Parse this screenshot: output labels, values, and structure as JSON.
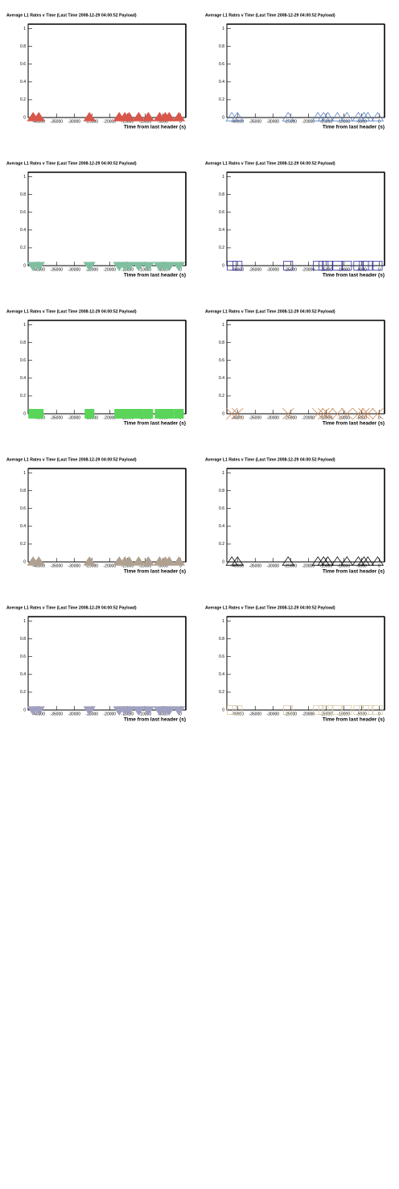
{
  "chart_data": [
    {
      "type": "scatter",
      "title": "Average L1 Rates v Time (Last Time 2008-12-29 04:00:52 Payload)",
      "xlabel": "Time from last header (s)",
      "x": [
        -41600,
        -40000,
        -25700,
        -17300,
        -15700,
        -14500,
        -11800,
        -9100,
        -5900,
        -4300,
        -3200,
        -450
      ],
      "values": [
        0,
        0,
        0,
        0,
        0,
        0,
        0,
        0,
        0,
        0,
        0,
        0
      ],
      "color": "#d9574a",
      "marker": "triangle-up",
      "filled": true,
      "xlim": [
        -43000,
        1500
      ],
      "ylim": [
        0,
        1.05
      ],
      "xticks": [
        -40000,
        -35000,
        -30000,
        -25000,
        -20000,
        -15000,
        -10000,
        -5000,
        0
      ],
      "yticks": [
        0,
        0.2,
        0.4,
        0.6,
        0.8,
        1
      ]
    },
    {
      "type": "scatter",
      "title": "Average L1 Rates v Time (Last Time 2008-12-29 04:00:52 Payload)",
      "xlabel": "Time from last header (s)",
      "x": [
        -41600,
        -40000,
        -25700,
        -17300,
        -15700,
        -14500,
        -11800,
        -9100,
        -5900,
        -4300,
        -3200,
        -450
      ],
      "values": [
        0,
        0,
        0,
        0,
        0,
        0,
        0,
        0,
        0,
        0,
        0,
        0
      ],
      "color": "#5a80c0",
      "marker": "triangle-up",
      "filled": false,
      "xlim": [
        -43000,
        1500
      ],
      "ylim": [
        0,
        1.05
      ],
      "xticks": [
        -40000,
        -35000,
        -30000,
        -25000,
        -20000,
        -15000,
        -10000,
        -5000,
        0
      ],
      "yticks": [
        0,
        0.2,
        0.4,
        0.6,
        0.8,
        1
      ]
    },
    {
      "type": "scatter",
      "title": "Average L1 Rates v Time (Last Time 2008-12-29 04:00:52 Payload)",
      "xlabel": "Time from last header (s)",
      "x": [
        -41600,
        -40000,
        -25700,
        -17300,
        -15700,
        -14500,
        -11800,
        -9100,
        -5900,
        -4300,
        -3200,
        -450
      ],
      "values": [
        0,
        0,
        0,
        0,
        0,
        0,
        0,
        0,
        0,
        0,
        0,
        0
      ],
      "color": "#7fbf9f",
      "marker": "triangle-down",
      "filled": true,
      "xlim": [
        -43000,
        1500
      ],
      "ylim": [
        0,
        1.05
      ],
      "xticks": [
        -40000,
        -35000,
        -30000,
        -25000,
        -20000,
        -15000,
        -10000,
        -5000,
        0
      ],
      "yticks": [
        0,
        0.2,
        0.4,
        0.6,
        0.8,
        1
      ]
    },
    {
      "type": "scatter",
      "title": "Average L1 Rates v Time (Last Time 2008-12-29 04:00:52 Payload)",
      "xlabel": "Time from last header (s)",
      "x": [
        -41600,
        -40000,
        -25700,
        -17300,
        -15700,
        -14500,
        -11800,
        -9100,
        -5900,
        -4300,
        -3200,
        -450
      ],
      "values": [
        0,
        0,
        0,
        0,
        0,
        0,
        0,
        0,
        0,
        0,
        0,
        0
      ],
      "color": "#3030a0",
      "marker": "square",
      "filled": false,
      "xlim": [
        -43000,
        1500
      ],
      "ylim": [
        0,
        1.05
      ],
      "xticks": [
        -40000,
        -35000,
        -30000,
        -25000,
        -20000,
        -15000,
        -10000,
        -5000,
        0
      ],
      "yticks": [
        0,
        0.2,
        0.4,
        0.6,
        0.8,
        1
      ]
    },
    {
      "type": "scatter",
      "title": "Average L1 Rates v Time (Last Time 2008-12-29 04:00:52 Payload)",
      "xlabel": "Time from last header (s)",
      "x": [
        -41600,
        -40000,
        -25700,
        -17300,
        -15700,
        -14500,
        -11800,
        -9100,
        -5900,
        -4300,
        -3200,
        -450
      ],
      "values": [
        0,
        0,
        0,
        0,
        0,
        0,
        0,
        0,
        0,
        0,
        0,
        0
      ],
      "color": "#5ad55a",
      "marker": "square",
      "filled": true,
      "xlim": [
        -43000,
        1500
      ],
      "ylim": [
        0,
        1.05
      ],
      "xticks": [
        -40000,
        -35000,
        -30000,
        -25000,
        -20000,
        -15000,
        -10000,
        -5000,
        0
      ],
      "yticks": [
        0,
        0.2,
        0.4,
        0.6,
        0.8,
        1
      ]
    },
    {
      "type": "scatter",
      "title": "Average L1 Rates v Time (Last Time 2008-12-29 04:00:52 Payload)",
      "xlabel": "Time from last header (s)",
      "x": [
        -41600,
        -40000,
        -25700,
        -17300,
        -15700,
        -14500,
        -11800,
        -9100,
        -5900,
        -4300,
        -3200,
        -450
      ],
      "values": [
        0,
        0,
        0,
        0,
        0,
        0,
        0,
        0,
        0,
        0,
        0,
        0
      ],
      "color": "#c8885a",
      "marker": "cross",
      "filled": false,
      "xlim": [
        -43000,
        1500
      ],
      "ylim": [
        0,
        1.05
      ],
      "xticks": [
        -40000,
        -35000,
        -30000,
        -25000,
        -20000,
        -15000,
        -10000,
        -5000,
        0
      ],
      "yticks": [
        0,
        0.2,
        0.4,
        0.6,
        0.8,
        1
      ]
    },
    {
      "type": "scatter",
      "title": "Average L1 Rates v Time (Last Time 2008-12-29 04:00:52 Payload)",
      "xlabel": "Time from last header (s)",
      "x": [
        -41600,
        -40000,
        -25700,
        -17300,
        -15700,
        -14500,
        -11800,
        -9100,
        -5900,
        -4300,
        -3200,
        -450
      ],
      "values": [
        0,
        0,
        0,
        0,
        0,
        0,
        0,
        0,
        0,
        0,
        0,
        0
      ],
      "color": "#b0a090",
      "marker": "triangle-up",
      "filled": true,
      "xlim": [
        -43000,
        1500
      ],
      "ylim": [
        0,
        1.05
      ],
      "xticks": [
        -40000,
        -35000,
        -30000,
        -25000,
        -20000,
        -15000,
        -10000,
        -5000,
        0
      ],
      "yticks": [
        0,
        0.2,
        0.4,
        0.6,
        0.8,
        1
      ]
    },
    {
      "type": "scatter",
      "title": "Average L1 Rates v Time (Last Time 2008-12-29 04:00:52 Payload)",
      "xlabel": "Time from last header (s)",
      "x": [
        -41600,
        -40000,
        -25700,
        -17300,
        -15700,
        -14500,
        -11800,
        -9100,
        -5900,
        -4300,
        -3200,
        -450
      ],
      "values": [
        0,
        0,
        0,
        0,
        0,
        0,
        0,
        0,
        0,
        0,
        0,
        0
      ],
      "color": "#000000",
      "marker": "triangle-up",
      "filled": false,
      "xlim": [
        -43000,
        1500
      ],
      "ylim": [
        0,
        1.05
      ],
      "xticks": [
        -40000,
        -35000,
        -30000,
        -25000,
        -20000,
        -15000,
        -10000,
        -5000,
        0
      ],
      "yticks": [
        0,
        0.2,
        0.4,
        0.6,
        0.8,
        1
      ]
    },
    {
      "type": "scatter",
      "title": "Average L1 Rates v Time (Last Time 2008-12-29 04:00:52 Payload)",
      "xlabel": "Time from last header (s)",
      "x": [
        -41600,
        -40000,
        -25700,
        -17300,
        -15700,
        -14500,
        -11800,
        -9100,
        -5900,
        -4300,
        -3200,
        -450
      ],
      "values": [
        0,
        0,
        0,
        0,
        0,
        0,
        0,
        0,
        0,
        0,
        0,
        0
      ],
      "color": "#a0a0c0",
      "marker": "triangle-down",
      "filled": true,
      "xlim": [
        -43000,
        1500
      ],
      "ylim": [
        0,
        1.05
      ],
      "xticks": [
        -40000,
        -35000,
        -30000,
        -25000,
        -20000,
        -15000,
        -10000,
        -5000,
        0
      ],
      "yticks": [
        0,
        0.2,
        0.4,
        0.6,
        0.8,
        1
      ]
    },
    {
      "type": "scatter",
      "title": "Average L1 Rates v Time (Last Time 2008-12-29 04:00:52 Payload)",
      "xlabel": "Time from last header (s)",
      "x": [
        -41600,
        -40000,
        -25700,
        -17300,
        -15700,
        -14500,
        -11800,
        -9100,
        -5900,
        -4300,
        -3200,
        -450
      ],
      "values": [
        0,
        0,
        0,
        0,
        0,
        0,
        0,
        0,
        0,
        0,
        0,
        0
      ],
      "color": "#d8c8a8",
      "marker": "square",
      "filled": false,
      "xlim": [
        -43000,
        1500
      ],
      "ylim": [
        0,
        1.05
      ],
      "xticks": [
        -40000,
        -35000,
        -30000,
        -25000,
        -20000,
        -15000,
        -10000,
        -5000,
        0
      ],
      "yticks": [
        0,
        0.2,
        0.4,
        0.6,
        0.8,
        1
      ]
    }
  ]
}
